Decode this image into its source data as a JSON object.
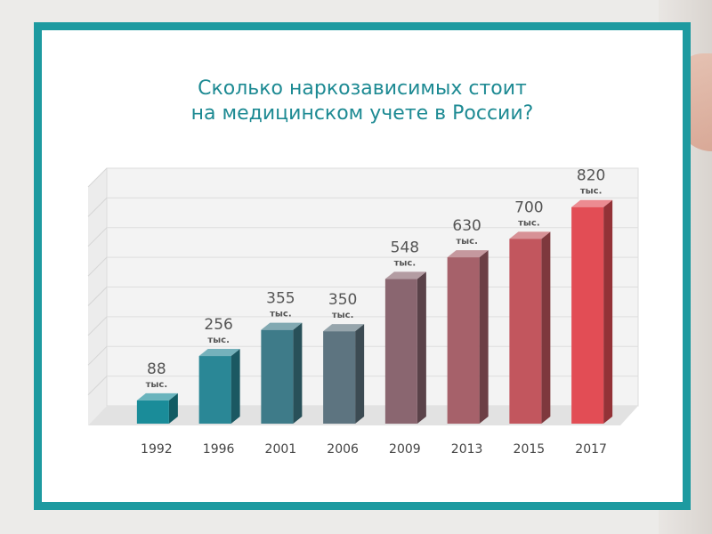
{
  "chart_data": {
    "type": "bar",
    "title_lines": [
      "Сколько наркозависимых стоит",
      "на медицинском учете в России?"
    ],
    "categories": [
      "1992",
      "1996",
      "2001",
      "2006",
      "2009",
      "2013",
      "2015",
      "2017"
    ],
    "values": [
      88,
      256,
      355,
      350,
      548,
      630,
      700,
      820
    ],
    "value_unit": "тыс.",
    "ylim": [
      0,
      900
    ],
    "grid": true,
    "bar_colors": [
      "#1a8c99",
      "#2a8796",
      "#3e7b89",
      "#5d7480",
      "#8a6670",
      "#a6616a",
      "#c2565e",
      "#e24d55"
    ]
  }
}
